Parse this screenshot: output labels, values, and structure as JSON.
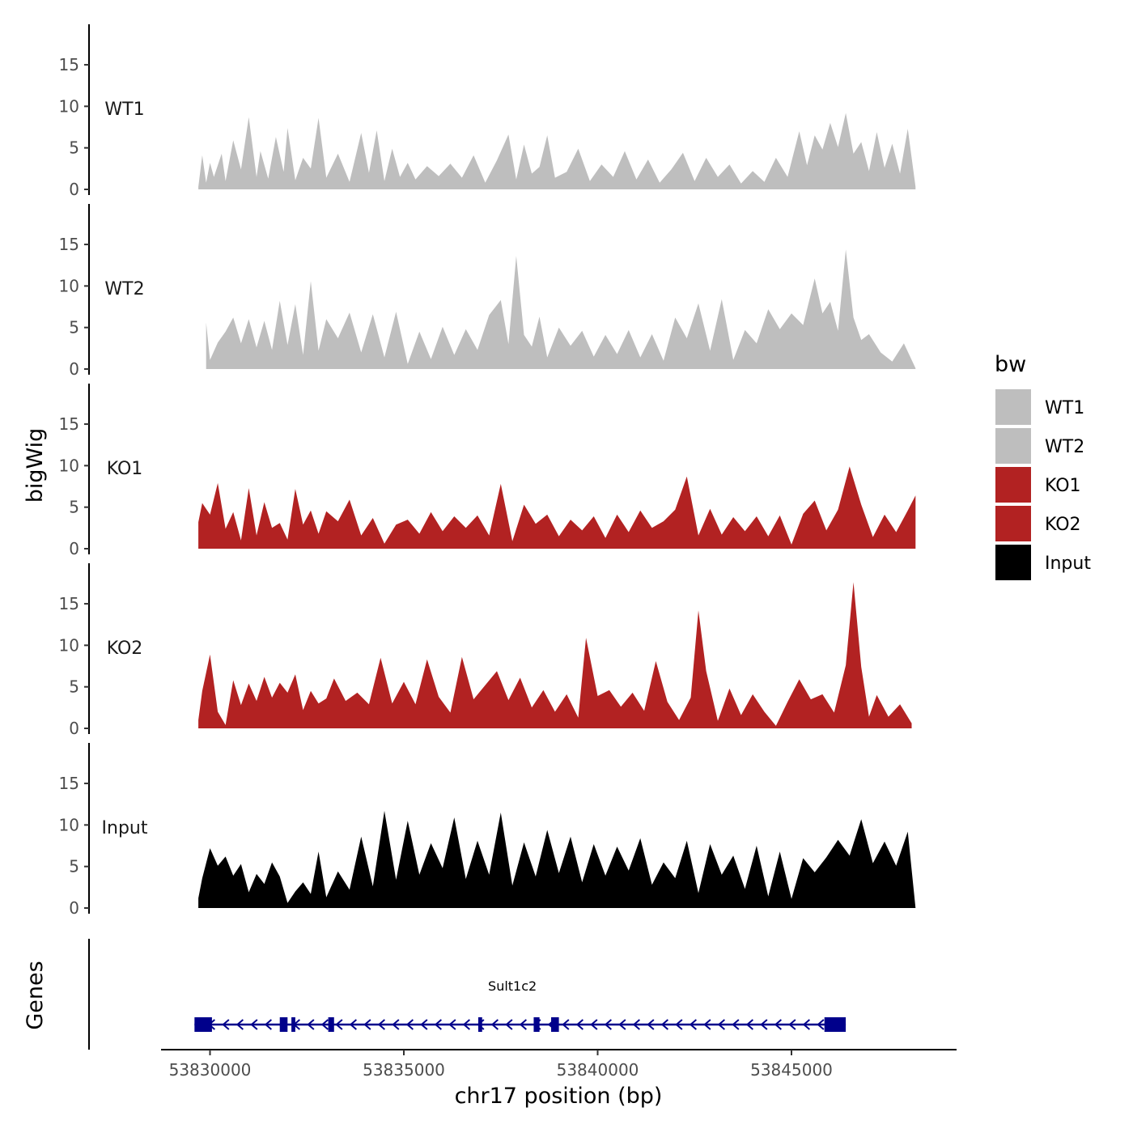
{
  "chart_data": {
    "type": "area",
    "xlabel": "chr17 position (bp)",
    "ylabel": "bigWig",
    "gene_track_label": "Genes",
    "xlim": [
      53828800,
      53849000
    ],
    "ylim": [
      0,
      19
    ],
    "x_ticks": [
      {
        "value": 53830000,
        "label": "53830000"
      },
      {
        "value": 53835000,
        "label": "53835000"
      },
      {
        "value": 53840000,
        "label": "53840000"
      },
      {
        "value": 53845000,
        "label": "53845000"
      }
    ],
    "y_ticks": [
      {
        "value": 0,
        "label": "0"
      },
      {
        "value": 5,
        "label": "5"
      },
      {
        "value": 10,
        "label": "10"
      },
      {
        "value": 15,
        "label": "15"
      }
    ],
    "legend": {
      "title": "bw",
      "position": "right",
      "entries": [
        {
          "name": "WT1",
          "color": "#bebebe"
        },
        {
          "name": "WT2",
          "color": "#bebebe"
        },
        {
          "name": "KO1",
          "color": "#b22222"
        },
        {
          "name": "KO2",
          "color": "#b22222"
        },
        {
          "name": "Input",
          "color": "#000000"
        }
      ]
    },
    "series": [
      {
        "name": "WT1",
        "label": "WT1",
        "color": "#bebebe",
        "x": [
          53829700,
          53829800,
          53829900,
          53830000,
          53830100,
          53830200,
          53830300,
          53830400,
          53830600,
          53830800,
          53831000,
          53831200,
          53831300,
          53831500,
          53831700,
          53831900,
          53832000,
          53832200,
          53832400,
          53832600,
          53832800,
          53833000,
          53833300,
          53833600,
          53833900,
          53834100,
          53834300,
          53834500,
          53834700,
          53834900,
          53835100,
          53835300,
          53835600,
          53835900,
          53836200,
          53836500,
          53836800,
          53837100,
          53837400,
          53837700,
          53837900,
          53838100,
          53838300,
          53838500,
          53838700,
          53838900,
          53839200,
          53839500,
          53839800,
          53840100,
          53840400,
          53840700,
          53841000,
          53841300,
          53841600,
          53841900,
          53842200,
          53842500,
          53842800,
          53843100,
          53843400,
          53843700,
          53844000,
          53844300,
          53844600,
          53844900,
          53845200,
          53845400,
          53845600,
          53845800,
          53846000,
          53846200,
          53846400,
          53846600,
          53846800,
          53847000,
          53847200,
          53847400,
          53847600,
          53847800,
          53848000,
          53848200
        ],
        "y": [
          0.3,
          4.1,
          0.8,
          3.2,
          1.5,
          2.9,
          4.3,
          1.0,
          5.9,
          2.4,
          8.7,
          1.5,
          4.6,
          1.3,
          6.3,
          2.1,
          7.4,
          1.1,
          3.8,
          2.5,
          8.6,
          1.4,
          4.3,
          0.9,
          6.8,
          2.0,
          7.1,
          1.0,
          4.9,
          1.5,
          3.2,
          1.2,
          2.8,
          1.6,
          3.1,
          1.4,
          4.1,
          0.8,
          3.5,
          6.6,
          1.2,
          5.4,
          1.9,
          2.7,
          6.5,
          1.4,
          2.1,
          4.9,
          1.0,
          3.0,
          1.5,
          4.6,
          1.2,
          3.6,
          0.8,
          2.4,
          4.4,
          1.0,
          3.8,
          1.5,
          3.0,
          0.7,
          2.2,
          0.9,
          3.8,
          1.5,
          7.0,
          2.9,
          6.5,
          4.8,
          8.0,
          5.1,
          9.2,
          4.3,
          5.7,
          2.2,
          6.9,
          2.6,
          5.5,
          1.9,
          7.3,
          0.3
        ]
      },
      {
        "name": "WT2",
        "label": "WT2",
        "color": "#bebebe",
        "x": [
          53829900,
          53830000,
          53830200,
          53830400,
          53830600,
          53830800,
          53831000,
          53831200,
          53831400,
          53831600,
          53831800,
          53832000,
          53832200,
          53832400,
          53832600,
          53832800,
          53833000,
          53833300,
          53833600,
          53833900,
          53834200,
          53834500,
          53834800,
          53835100,
          53835400,
          53835700,
          53836000,
          53836300,
          53836600,
          53836900,
          53837200,
          53837500,
          53837700,
          53837900,
          53838100,
          53838300,
          53838500,
          53838700,
          53839000,
          53839300,
          53839600,
          53839900,
          53840200,
          53840500,
          53840800,
          53841100,
          53841400,
          53841700,
          53842000,
          53842300,
          53842600,
          53842900,
          53843200,
          53843500,
          53843800,
          53844100,
          53844400,
          53844700,
          53845000,
          53845300,
          53845600,
          53845800,
          53846000,
          53846200,
          53846400,
          53846600,
          53846800,
          53847000,
          53847300,
          53847600,
          53847900,
          53848200
        ],
        "y": [
          5.6,
          1.1,
          3.2,
          4.5,
          6.2,
          3.1,
          6.0,
          2.6,
          5.8,
          2.3,
          8.2,
          2.9,
          7.8,
          1.7,
          10.6,
          2.2,
          6.0,
          3.7,
          6.8,
          2.0,
          6.6,
          1.4,
          6.9,
          0.6,
          4.5,
          1.2,
          5.1,
          1.7,
          4.8,
          2.3,
          6.5,
          8.3,
          3.0,
          13.6,
          4.1,
          2.7,
          6.3,
          1.4,
          5.0,
          2.8,
          4.6,
          1.5,
          4.1,
          1.8,
          4.7,
          1.4,
          4.2,
          1.0,
          6.2,
          3.7,
          7.9,
          2.2,
          8.4,
          1.1,
          4.7,
          3.1,
          7.2,
          4.8,
          6.7,
          5.3,
          10.9,
          6.7,
          8.1,
          4.6,
          14.4,
          6.2,
          3.5,
          4.2,
          2.0,
          0.9,
          3.1,
          0.1
        ]
      },
      {
        "name": "KO1",
        "label": "KO1",
        "color": "#b22222",
        "x": [
          53829700,
          53829800,
          53830000,
          53830200,
          53830400,
          53830600,
          53830800,
          53831000,
          53831200,
          53831400,
          53831600,
          53831800,
          53832000,
          53832200,
          53832400,
          53832600,
          53832800,
          53833000,
          53833300,
          53833600,
          53833900,
          53834200,
          53834500,
          53834800,
          53835100,
          53835400,
          53835700,
          53836000,
          53836300,
          53836600,
          53836900,
          53837200,
          53837500,
          53837800,
          53838100,
          53838400,
          53838700,
          53839000,
          53839300,
          53839600,
          53839900,
          53840200,
          53840500,
          53840800,
          53841100,
          53841400,
          53841700,
          53842000,
          53842300,
          53842600,
          53842900,
          53843200,
          53843500,
          53843800,
          53844100,
          53844400,
          53844700,
          53845000,
          53845300,
          53845600,
          53845900,
          53846200,
          53846500,
          53846800,
          53847100,
          53847400,
          53847700,
          53848000,
          53848200
        ],
        "y": [
          3.2,
          5.5,
          4.1,
          7.9,
          2.4,
          4.4,
          1.0,
          7.3,
          1.6,
          5.6,
          2.5,
          3.1,
          1.1,
          7.2,
          2.9,
          4.6,
          1.8,
          4.5,
          3.3,
          5.9,
          1.6,
          3.7,
          0.6,
          2.9,
          3.5,
          1.8,
          4.4,
          2.1,
          3.9,
          2.5,
          4.0,
          1.6,
          7.8,
          0.9,
          5.3,
          3.0,
          4.1,
          1.5,
          3.5,
          2.2,
          3.9,
          1.3,
          4.1,
          2.0,
          4.6,
          2.5,
          3.3,
          4.7,
          8.7,
          1.6,
          4.8,
          1.7,
          3.8,
          2.1,
          3.9,
          1.5,
          4.0,
          0.5,
          4.2,
          5.8,
          2.2,
          4.7,
          9.9,
          5.3,
          1.4,
          4.1,
          2.0,
          4.6,
          6.4
        ]
      },
      {
        "name": "KO2",
        "label": "KO2",
        "color": "#b22222",
        "x": [
          53829700,
          53829800,
          53830000,
          53830200,
          53830400,
          53830600,
          53830800,
          53831000,
          53831200,
          53831400,
          53831600,
          53831800,
          53832000,
          53832200,
          53832400,
          53832600,
          53832800,
          53833000,
          53833200,
          53833500,
          53833800,
          53834100,
          53834400,
          53834700,
          53835000,
          53835300,
          53835600,
          53835900,
          53836200,
          53836500,
          53836800,
          53837100,
          53837400,
          53837700,
          53838000,
          53838300,
          53838600,
          53838900,
          53839200,
          53839500,
          53839700,
          53840000,
          53840300,
          53840600,
          53840900,
          53841200,
          53841500,
          53841800,
          53842100,
          53842400,
          53842600,
          53842800,
          53843100,
          53843400,
          53843700,
          53844000,
          53844300,
          53844600,
          53844900,
          53845200,
          53845500,
          53845800,
          53846100,
          53846400,
          53846600,
          53846800,
          53847000,
          53847200,
          53847500,
          53847800,
          53848100
        ],
        "y": [
          1.0,
          4.5,
          8.9,
          2.0,
          0.4,
          5.8,
          2.8,
          5.4,
          3.3,
          6.2,
          3.7,
          5.5,
          4.3,
          6.5,
          2.2,
          4.5,
          3.0,
          3.6,
          6.0,
          3.3,
          4.3,
          2.9,
          8.5,
          3.0,
          5.6,
          2.9,
          8.3,
          3.8,
          1.9,
          8.6,
          3.5,
          5.2,
          6.9,
          3.4,
          6.1,
          2.5,
          4.6,
          2.0,
          4.1,
          1.3,
          10.9,
          3.9,
          4.6,
          2.6,
          4.3,
          2.1,
          8.1,
          3.2,
          1.0,
          3.7,
          14.2,
          6.9,
          0.9,
          4.8,
          1.6,
          4.1,
          2.0,
          0.3,
          3.2,
          5.9,
          3.5,
          4.1,
          1.9,
          7.6,
          17.6,
          7.4,
          1.4,
          4.0,
          1.4,
          2.9,
          0.6
        ]
      },
      {
        "name": "Input",
        "label": "Input",
        "color": "#000000",
        "x": [
          53829700,
          53829800,
          53830000,
          53830200,
          53830400,
          53830600,
          53830800,
          53831000,
          53831200,
          53831400,
          53831600,
          53831800,
          53832000,
          53832200,
          53832400,
          53832600,
          53832800,
          53833000,
          53833300,
          53833600,
          53833900,
          53834200,
          53834500,
          53834800,
          53835100,
          53835400,
          53835700,
          53836000,
          53836300,
          53836600,
          53836900,
          53837200,
          53837500,
          53837800,
          53838100,
          53838400,
          53838700,
          53839000,
          53839300,
          53839600,
          53839900,
          53840200,
          53840500,
          53840800,
          53841100,
          53841400,
          53841700,
          53842000,
          53842300,
          53842600,
          53842900,
          53843200,
          53843500,
          53843800,
          53844100,
          53844400,
          53844700,
          53845000,
          53845300,
          53845600,
          53845900,
          53846200,
          53846500,
          53846800,
          53847100,
          53847400,
          53847700,
          53848000,
          53848200
        ],
        "y": [
          1.2,
          3.6,
          7.2,
          5.1,
          6.2,
          3.9,
          5.3,
          1.9,
          4.1,
          2.9,
          5.5,
          3.8,
          0.6,
          2.0,
          3.1,
          1.7,
          6.8,
          1.3,
          4.4,
          2.2,
          8.6,
          2.6,
          11.7,
          3.4,
          10.5,
          4.0,
          7.8,
          4.8,
          10.9,
          3.5,
          8.1,
          4.0,
          11.5,
          2.7,
          7.9,
          3.8,
          9.4,
          4.2,
          8.6,
          3.1,
          7.7,
          3.9,
          7.4,
          4.5,
          8.4,
          2.8,
          5.5,
          3.6,
          8.1,
          1.8,
          7.7,
          4.0,
          6.3,
          2.3,
          7.5,
          1.4,
          6.8,
          1.1,
          6.0,
          4.3,
          6.1,
          8.2,
          6.3,
          10.7,
          5.4,
          8.0,
          5.1,
          9.2,
          0.0
        ]
      }
    ],
    "gene": {
      "name": "Sult1c2",
      "strand": "-",
      "start": 53829600,
      "end": 53846400,
      "color": "#00008b",
      "exons": [
        [
          53829600,
          53830050
        ],
        [
          53831800,
          53832000
        ],
        [
          53832100,
          53832200
        ],
        [
          53833050,
          53833200
        ],
        [
          53836920,
          53837020
        ],
        [
          53838350,
          53838500
        ],
        [
          53838800,
          53839000
        ],
        [
          53845850,
          53846400
        ]
      ]
    }
  }
}
